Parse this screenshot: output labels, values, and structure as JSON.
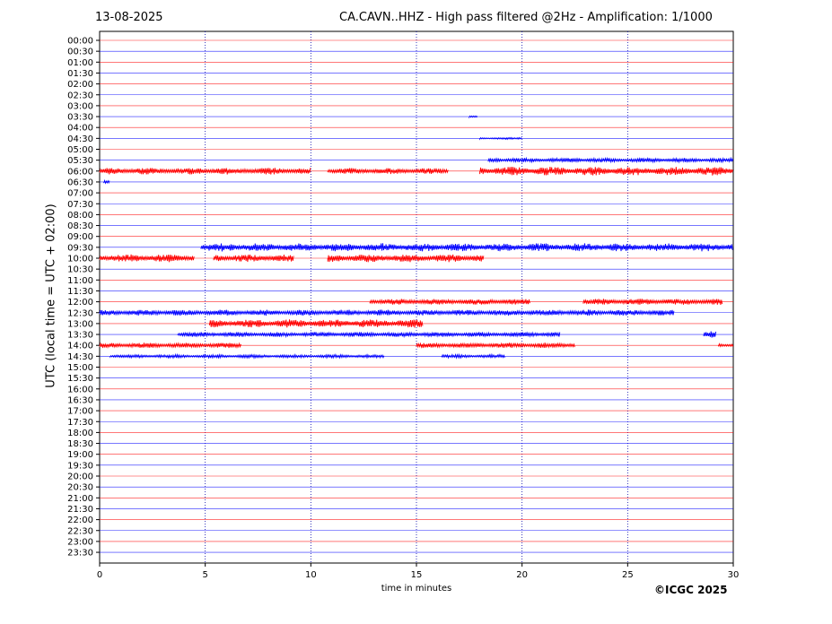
{
  "header": {
    "date": "13-08-2025",
    "title": "CA.CAVN..HHZ - High pass filtered @2Hz - Amplification: 1/1000"
  },
  "chart_data": {
    "type": "line",
    "title": "CA.CAVN..HHZ - High pass filtered @2Hz - Amplification: 1/1000",
    "xlabel": "time in minutes",
    "ylabel": "UTC (local time = UTC + 02:00)",
    "xlim": [
      0,
      30
    ],
    "x_ticks": [
      "0",
      "5",
      "10",
      "15",
      "20",
      "25",
      "30"
    ],
    "grid": "vertical dotted lines every 5 minutes",
    "colors": {
      "odd_hour_rows": "#ff0000",
      "half_hour_rows": "#0000ff",
      "grid": "#0000aa"
    },
    "rows": [
      "00:00",
      "00:30",
      "01:00",
      "01:30",
      "02:00",
      "02:30",
      "03:00",
      "03:30",
      "04:00",
      "04:30",
      "05:00",
      "05:30",
      "06:00",
      "06:30",
      "07:00",
      "07:30",
      "08:00",
      "08:30",
      "09:00",
      "09:30",
      "10:00",
      "10:30",
      "11:00",
      "11:30",
      "12:00",
      "12:30",
      "13:00",
      "13:30",
      "14:00",
      "14:30",
      "15:00",
      "15:30",
      "16:00",
      "16:30",
      "17:00",
      "17:30",
      "18:00",
      "18:30",
      "19:00",
      "19:30",
      "20:00",
      "20:30",
      "21:00",
      "21:30",
      "22:00",
      "22:30",
      "23:00",
      "23:30"
    ],
    "activity": [
      {
        "row": "03:30",
        "start": 17.5,
        "end": 17.9,
        "amp": 0.3
      },
      {
        "row": "04:30",
        "start": 18.0,
        "end": 20.0,
        "amp": 0.2
      },
      {
        "row": "05:30",
        "start": 18.4,
        "end": 30.0,
        "amp": 0.45
      },
      {
        "row": "06:00",
        "start": 0.0,
        "end": 10.0,
        "amp": 0.7
      },
      {
        "row": "06:00",
        "start": 10.8,
        "end": 16.5,
        "amp": 0.6
      },
      {
        "row": "06:00",
        "start": 18.0,
        "end": 30.0,
        "amp": 0.9
      },
      {
        "row": "06:30",
        "start": 0.2,
        "end": 0.5,
        "amp": 0.4
      },
      {
        "row": "09:30",
        "start": 4.8,
        "end": 30.0,
        "amp": 0.85
      },
      {
        "row": "10:00",
        "start": 0.0,
        "end": 4.5,
        "amp": 0.8
      },
      {
        "row": "10:00",
        "start": 5.4,
        "end": 9.2,
        "amp": 0.75
      },
      {
        "row": "10:00",
        "start": 10.8,
        "end": 18.2,
        "amp": 0.8
      },
      {
        "row": "12:00",
        "start": 12.8,
        "end": 20.4,
        "amp": 0.6
      },
      {
        "row": "12:00",
        "start": 22.9,
        "end": 29.5,
        "amp": 0.65
      },
      {
        "row": "12:30",
        "start": 0.0,
        "end": 27.2,
        "amp": 0.6
      },
      {
        "row": "13:00",
        "start": 5.2,
        "end": 15.3,
        "amp": 0.85
      },
      {
        "row": "13:30",
        "start": 3.7,
        "end": 21.8,
        "amp": 0.5
      },
      {
        "row": "13:30",
        "start": 28.6,
        "end": 29.2,
        "amp": 0.8
      },
      {
        "row": "14:00",
        "start": 0.0,
        "end": 6.7,
        "amp": 0.55
      },
      {
        "row": "14:00",
        "start": 15.0,
        "end": 22.5,
        "amp": 0.55
      },
      {
        "row": "14:00",
        "start": 29.3,
        "end": 30.0,
        "amp": 0.4
      },
      {
        "row": "14:30",
        "start": 0.5,
        "end": 13.5,
        "amp": 0.35
      },
      {
        "row": "14:30",
        "start": 16.2,
        "end": 19.2,
        "amp": 0.35
      }
    ]
  },
  "copyright": "©ICGC 2025"
}
